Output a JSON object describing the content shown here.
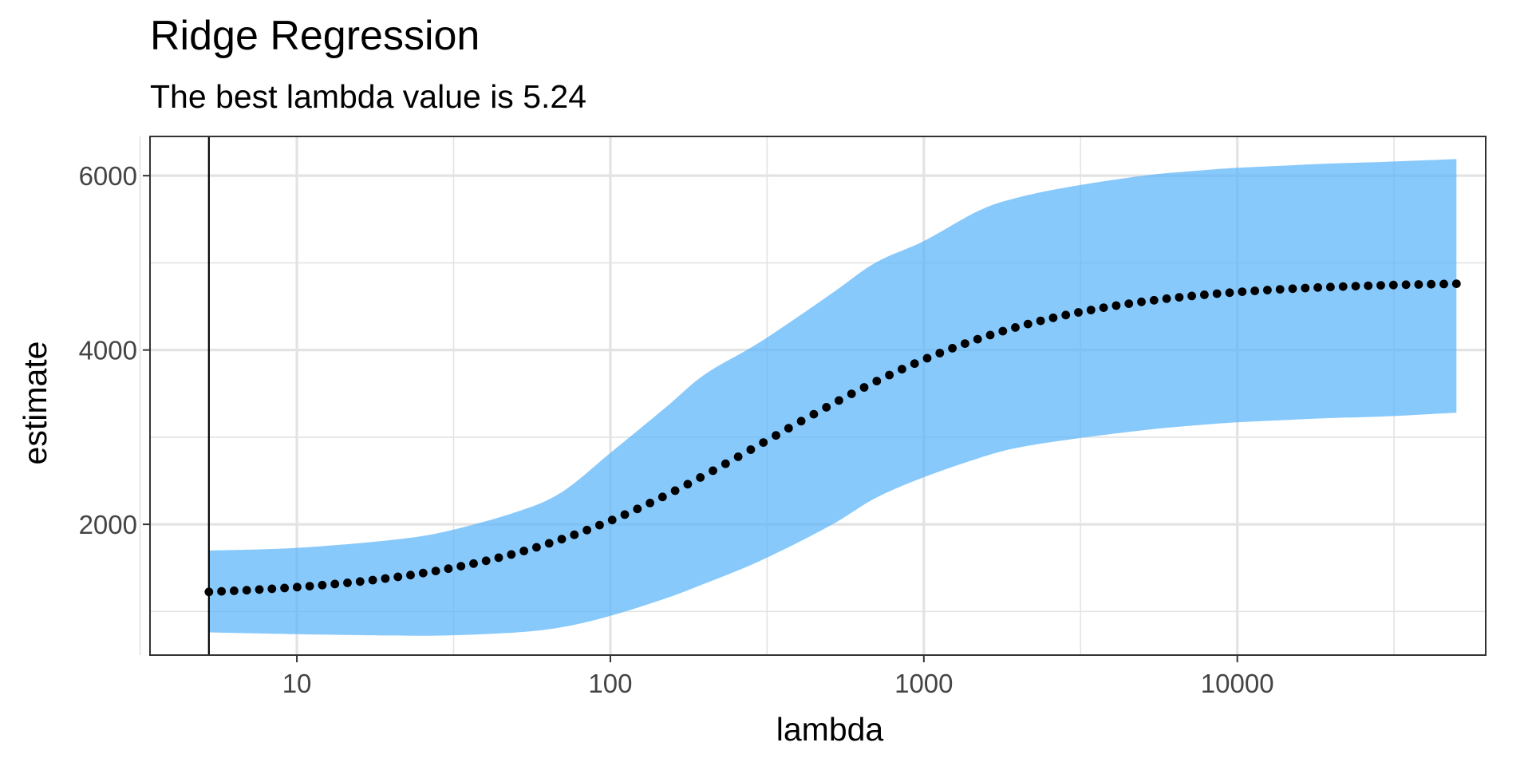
{
  "chart_data": {
    "type": "line",
    "title": "Ridge Regression",
    "subtitle": "The best lambda value is 5.24",
    "xlabel": "lambda",
    "ylabel": "estimate",
    "x_scale": "log10",
    "xlim": [
      3.4,
      62000
    ],
    "ylim": [
      500,
      6450
    ],
    "x_ticks": [
      10,
      100,
      1000,
      10000
    ],
    "x_tick_labels": [
      "10",
      "100",
      "1000",
      "10000"
    ],
    "x_minor_ticks": [
      3.162,
      31.62,
      316.2,
      3162,
      31620
    ],
    "y_ticks": [
      2000,
      4000,
      6000
    ],
    "y_tick_labels": [
      "2000",
      "4000",
      "6000"
    ],
    "y_minor_ticks": [
      1000,
      3000,
      5000
    ],
    "grid": true,
    "reference_line": {
      "x": 5.24
    },
    "colors": {
      "band": "#5ab4fb",
      "band_opacity": 0.72,
      "points": "#000000",
      "reference_line": "#000000",
      "grid": "#e3e3e3",
      "panel_border": "#333333"
    },
    "series": [
      {
        "type": "points",
        "lambda_range": [
          5.24,
          50000
        ],
        "n_points": 100,
        "estimate_low": 1225,
        "estimate_high": 4760,
        "logistic_midpoint_lambda": 320,
        "logistic_steepness_per_log10": 2.25
      }
    ],
    "band": {
      "x": [
        5.24,
        10,
        20,
        30,
        50,
        70,
        100,
        150,
        200,
        300,
        500,
        700,
        1000,
        1500,
        2000,
        3000,
        5000,
        7000,
        10000,
        15000,
        20000,
        30000,
        50000
      ],
      "upper": [
        1700,
        1730,
        1820,
        1920,
        2140,
        2370,
        2820,
        3340,
        3720,
        4090,
        4630,
        5000,
        5250,
        5600,
        5750,
        5880,
        6000,
        6050,
        6090,
        6120,
        6140,
        6160,
        6190
      ],
      "lower": [
        760,
        740,
        725,
        725,
        760,
        820,
        950,
        1150,
        1320,
        1580,
        1980,
        2300,
        2540,
        2760,
        2880,
        2980,
        3080,
        3130,
        3170,
        3200,
        3220,
        3240,
        3280
      ]
    }
  }
}
